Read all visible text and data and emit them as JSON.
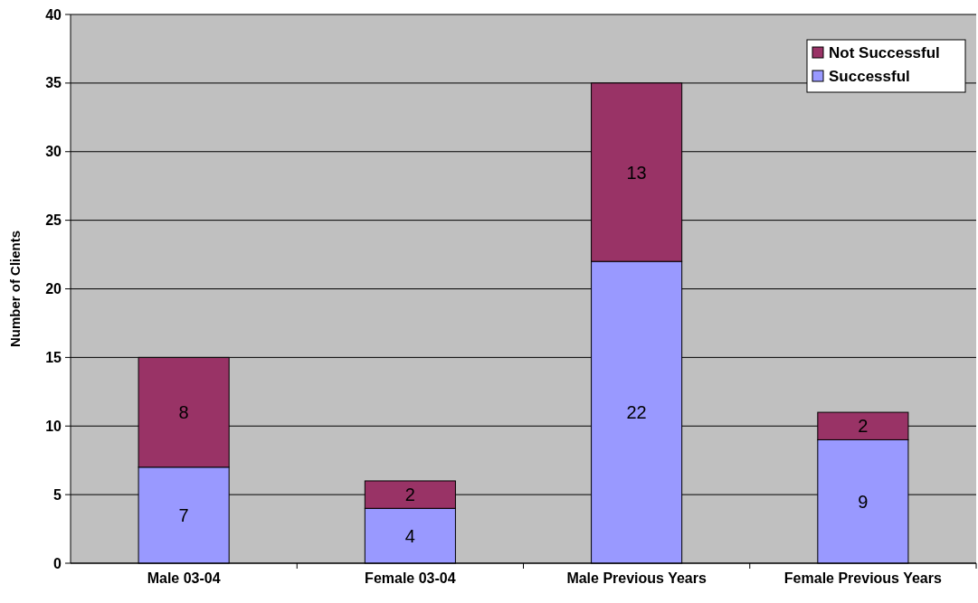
{
  "chart_data": {
    "type": "bar",
    "stacked": true,
    "ylabel": "Number of Clients",
    "categories": [
      "Male 03-04",
      "Female 03-04",
      "Male Previous Years",
      "Female Previous Years"
    ],
    "series": [
      {
        "name": "Successful",
        "color": "#9999ff",
        "values": [
          7,
          4,
          22,
          9
        ]
      },
      {
        "name": "Not Successful",
        "color": "#993366",
        "values": [
          8,
          2,
          13,
          2
        ]
      }
    ],
    "ylim": [
      0,
      40
    ],
    "yticks": [
      0,
      5,
      10,
      15,
      20,
      25,
      30,
      35,
      40
    ],
    "grid": "y",
    "legend": "top right",
    "data_labels": true
  }
}
